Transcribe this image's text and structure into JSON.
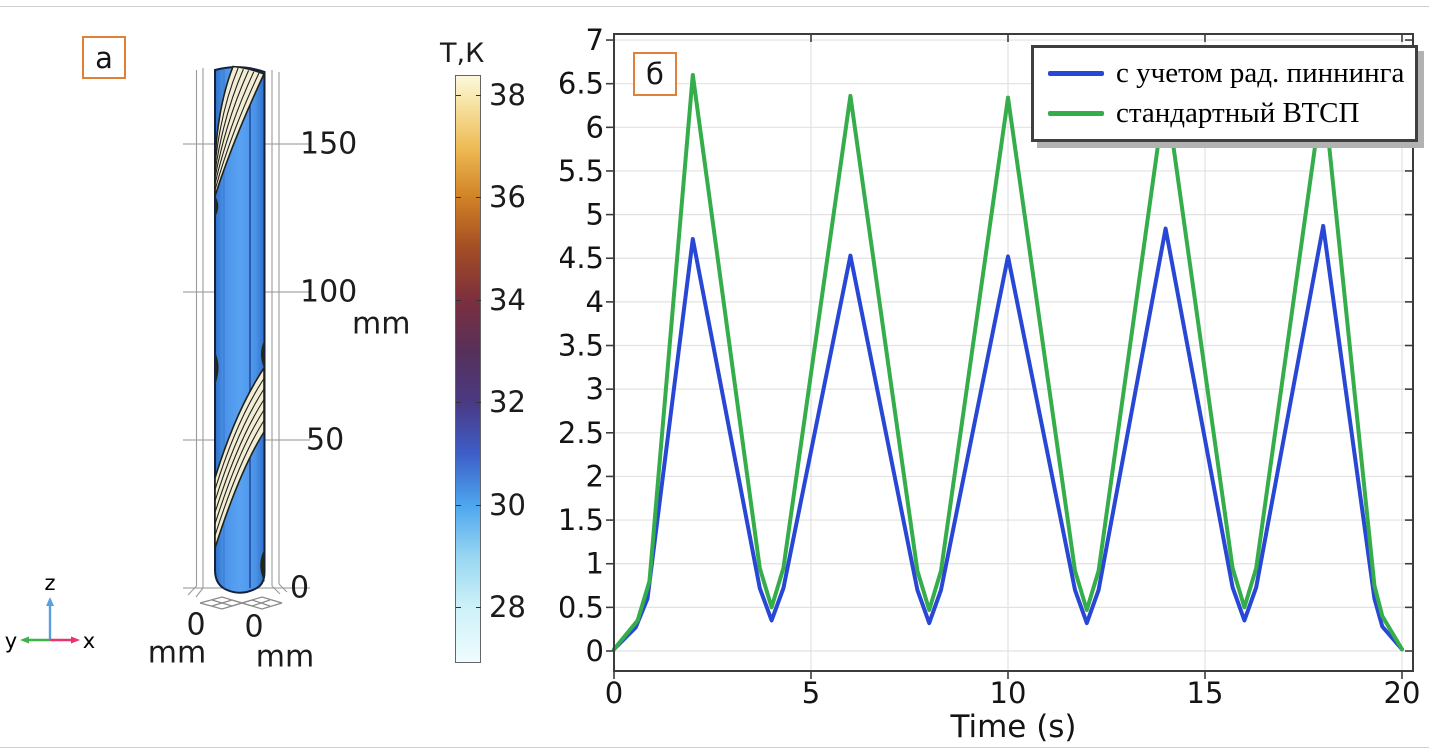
{
  "panel_a": {
    "label": "а",
    "z_axis": {
      "ticks": [
        "150",
        "100",
        "50",
        "0"
      ],
      "unit": "mm"
    },
    "x_axis": {
      "tick": "0",
      "unit": "mm"
    },
    "y_axis": {
      "tick": "0",
      "unit": "mm"
    },
    "triad": {
      "up": "z",
      "left": "y",
      "right": "x"
    },
    "model_colors": {
      "cylinder_blue": "#4a92e8",
      "tape_cream": "#f2eed6"
    }
  },
  "colorbar": {
    "title": "Т,К",
    "ticks": [
      "38",
      "36",
      "34",
      "32",
      "30",
      "28"
    ],
    "colormap": [
      "#eefcfe",
      "#4da6ee",
      "#4a3a84",
      "#7c2f3e",
      "#d08125",
      "#fdf8dd"
    ]
  },
  "panel_b": {
    "label": "б"
  },
  "chart_data": {
    "type": "line",
    "title": "",
    "xlabel": "Time (s)",
    "ylabel": "",
    "xlim": [
      0,
      20
    ],
    "ylim": [
      0,
      7
    ],
    "x_ticks": [
      0,
      5,
      10,
      15,
      20
    ],
    "y_tick_min": 0,
    "y_tick_max": 7,
    "y_tick_step": 0.5,
    "grid": true,
    "legend_position": "top-right",
    "frame_color": "#3c3c3c",
    "grid_color": "#e2e2e2",
    "series": [
      {
        "name": "с учетом рад. пиннинга",
        "color": "#2847d4",
        "x": [
          0,
          0.55,
          0.85,
          2,
          3.7,
          4,
          4.3,
          6,
          7.7,
          8,
          8.3,
          10,
          11.7,
          12,
          12.3,
          14,
          15.7,
          16,
          16.3,
          18,
          19.3,
          19.5,
          20
        ],
        "y": [
          0.02,
          0.27,
          0.6,
          4.72,
          0.72,
          0.35,
          0.72,
          4.53,
          0.7,
          0.32,
          0.7,
          4.52,
          0.7,
          0.32,
          0.7,
          4.84,
          0.73,
          0.35,
          0.73,
          4.87,
          0.6,
          0.28,
          0.02
        ]
      },
      {
        "name": "стандартный ВТСП",
        "color": "#35ad4a",
        "x": [
          0,
          0.6,
          0.9,
          2,
          3.7,
          4,
          4.3,
          6,
          7.7,
          8,
          8.3,
          10,
          11.7,
          12,
          12.3,
          14,
          15.7,
          16,
          16.3,
          18,
          19.3,
          19.5,
          20
        ],
        "y": [
          0.02,
          0.35,
          0.8,
          6.6,
          0.95,
          0.5,
          0.95,
          6.36,
          0.92,
          0.47,
          0.92,
          6.34,
          0.92,
          0.47,
          0.92,
          6.42,
          0.95,
          0.5,
          0.95,
          6.45,
          0.75,
          0.4,
          0.02
        ]
      }
    ]
  }
}
